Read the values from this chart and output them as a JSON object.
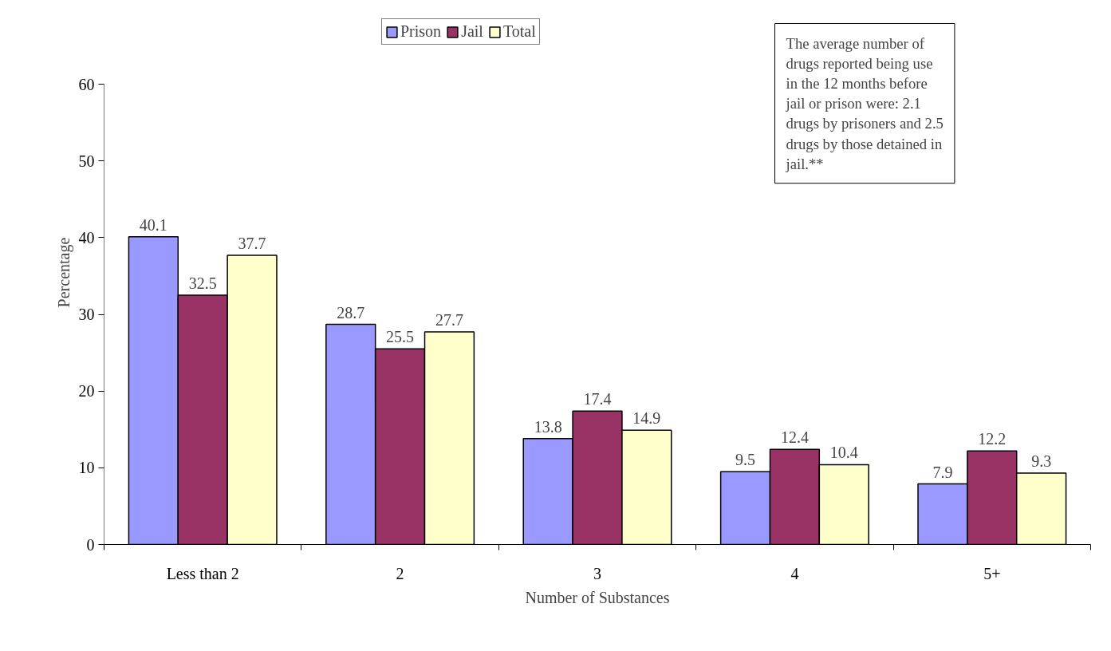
{
  "chart_data": {
    "type": "bar",
    "xlabel": "Number of Substances",
    "ylabel": "Percentage",
    "categories": [
      "Less than 2",
      "2",
      "3",
      "4",
      "5+"
    ],
    "series": [
      {
        "name": "Prison",
        "color": "#9999ff",
        "values": [
          40.1,
          28.7,
          13.8,
          9.5,
          7.9
        ]
      },
      {
        "name": "Jail",
        "color": "#993366",
        "values": [
          32.5,
          25.5,
          17.4,
          12.4,
          12.2
        ]
      },
      {
        "name": "Total",
        "color": "#ffffcc",
        "values": [
          37.7,
          27.7,
          14.9,
          10.4,
          9.3
        ]
      }
    ],
    "ylim": [
      0,
      60
    ],
    "yticks": [
      0,
      10,
      20,
      30,
      40,
      50,
      60
    ],
    "data_labels": true,
    "legend": "top",
    "annotations": [
      "The average number of drugs reported being use in the 12 months before jail or prison were: 2.1 drugs by prisoners and 2.5 drugs by those detained in jail.**"
    ]
  }
}
